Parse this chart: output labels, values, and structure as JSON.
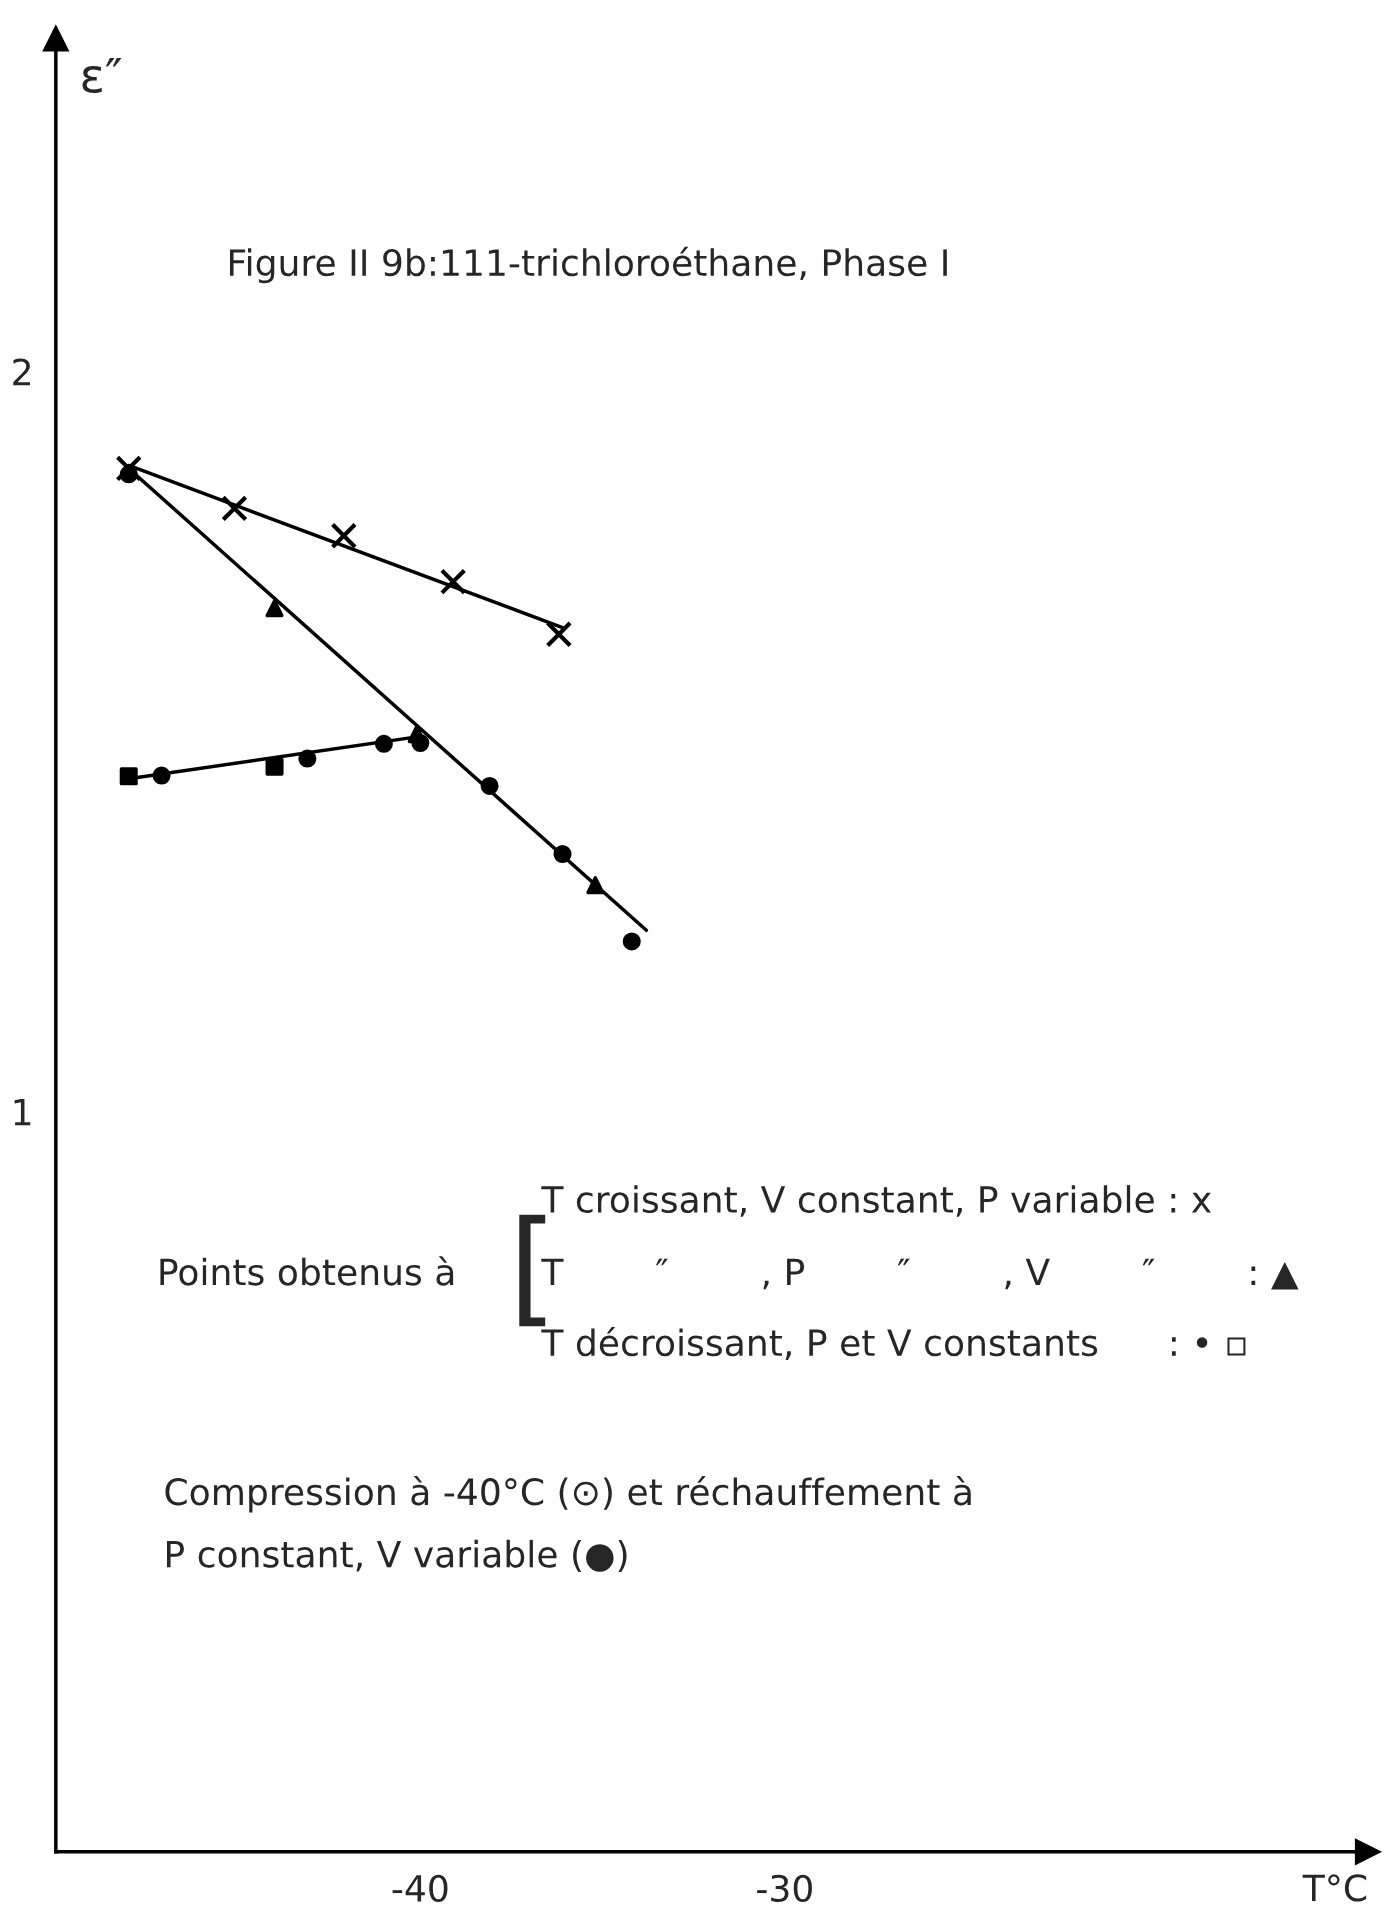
{
  "chart_data": {
    "type": "scatter",
    "title": "Figure II 9b:111-trichloroéthane, Phase I",
    "xlabel": "T°C",
    "ylabel": "ε″",
    "xlim": [
      -50,
      -14
    ],
    "ylim": [
      0,
      2.45
    ],
    "xticks": [
      -40,
      -30
    ],
    "yticks": [
      1,
      2
    ],
    "series": [
      {
        "type": "line",
        "color": "#000000",
        "line_style": "solid",
        "x": [
          -48.0,
          -36.1
        ],
        "values": [
          1.873,
          1.654
        ]
      },
      {
        "type": "line",
        "color": "#000000",
        "line_style": "solid",
        "x": [
          -48.0,
          -33.8
        ],
        "values": [
          1.869,
          1.245
        ]
      },
      {
        "type": "line",
        "color": "#000000",
        "line_style": "solid",
        "x": [
          -48.1,
          -40.0
        ],
        "values": [
          1.449,
          1.507
        ]
      },
      {
        "color": "#000000",
        "marker": "cross",
        "x": [
          -48.0,
          -45.1,
          -42.1,
          -39.1,
          -36.2
        ],
        "values": [
          1.869,
          1.815,
          1.778,
          1.716,
          1.645
        ]
      },
      {
        "color": "#000000",
        "marker": "triangle",
        "x": [
          -44.0,
          -40.1,
          -35.2
        ],
        "values": [
          1.68,
          1.51,
          1.306
        ]
      },
      {
        "color": "#000000",
        "marker": "circle",
        "x": [
          -48.0,
          -40.0,
          -38.1,
          -36.1,
          -34.2,
          -47.1,
          -43.1,
          -41.0
        ],
        "values": [
          1.861,
          1.498,
          1.44,
          1.348,
          1.23,
          1.454,
          1.477,
          1.497
        ]
      },
      {
        "color": "#000000",
        "marker": "square",
        "x": [
          -48.0,
          -44.0
        ],
        "values": [
          1.453,
          1.466
        ]
      }
    ],
    "annotations": [
      "Points obtenus à",
      "[",
      "T croissant, V constant, P variable : x",
      "T        ″        , P        ″        , V        ″        : ▲",
      "T décroissant, P et V constants      : • ▫",
      "Compression à -40°C (⊙) et réchauffement à\nP constant, V variable (●)"
    ]
  }
}
